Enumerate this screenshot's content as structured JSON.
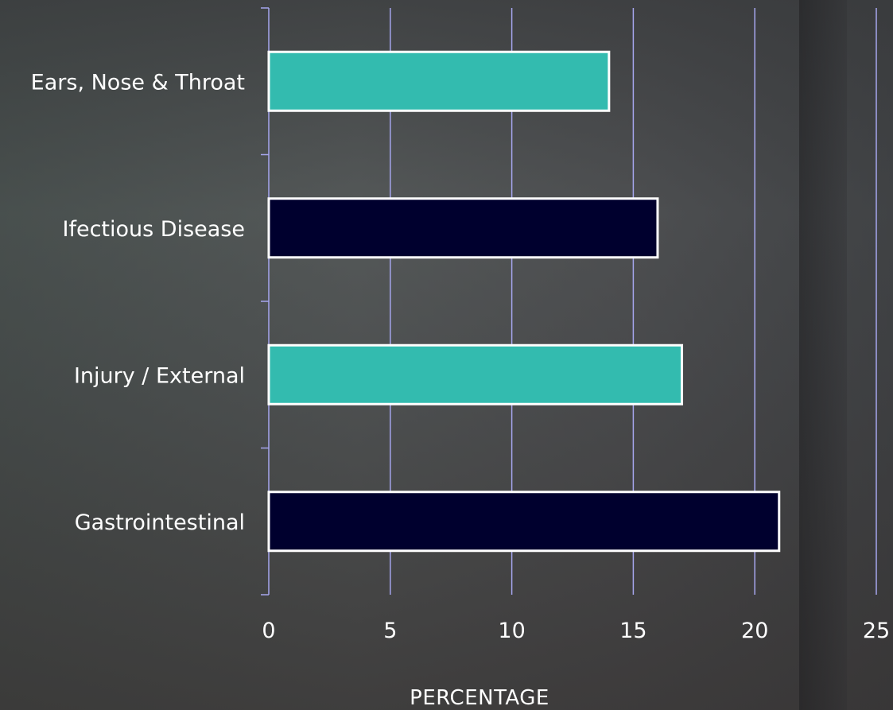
{
  "chart_data": {
    "type": "bar",
    "orientation": "horizontal",
    "categories": [
      "Ears, Nose & Throat",
      "Ifectious Disease",
      "Injury / External",
      "Gastrointestinal"
    ],
    "values": [
      14,
      16,
      17,
      21
    ],
    "bar_colors": [
      "#33bbaf",
      "#00002e",
      "#33bbaf",
      "#00002e"
    ],
    "xlabel": "PERCENTAGE",
    "ylabel": "",
    "title": "",
    "xlim": [
      0,
      25
    ],
    "xticks": [
      "0",
      "5",
      "10",
      "15",
      "20",
      "25"
    ],
    "grid": true,
    "legend": "none",
    "colors": {
      "gridline": "#a6a6ee",
      "bar_border": "#ffffff",
      "text": "#ffffff"
    }
  }
}
